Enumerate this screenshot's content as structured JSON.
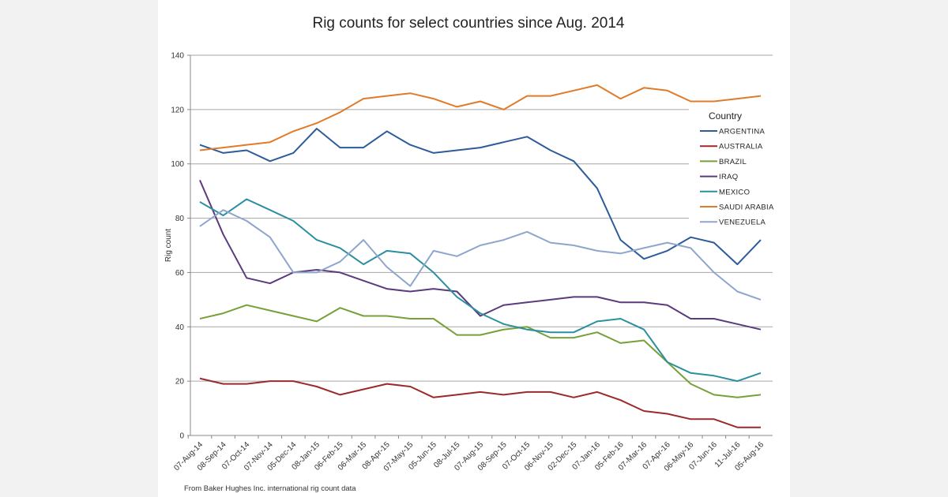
{
  "chart_data": {
    "type": "line",
    "title": "Rig counts for select countries since Aug. 2014",
    "xlabel": "",
    "ylabel": "Rig count",
    "ylim": [
      0,
      140
    ],
    "yticks": [
      0,
      20,
      40,
      60,
      80,
      100,
      120,
      140
    ],
    "grid": true,
    "legend_title": "Country",
    "legend_placement": "right",
    "source_note": "From Baker Hughes Inc. international rig count data",
    "categories": [
      "07-Aug-14",
      "08-Sep-14",
      "07-Oct-14",
      "07-Nov-14",
      "05-Dec-14",
      "08-Jan-15",
      "06-Feb-15",
      "06-Mar-15",
      "08-Apr-15",
      "07-May-15",
      "05-Jun-15",
      "08-Jul-15",
      "07-Aug-15",
      "08-Sep-15",
      "07-Oct-15",
      "06-Nov-15",
      "02-Dec-15",
      "07-Jan-16",
      "05-Feb-16",
      "07-Mar-16",
      "07-Apr-16",
      "06-May-16",
      "07-Jun-16",
      "11-Jul-16",
      "05-Aug-16"
    ],
    "series": [
      {
        "name": "ARGENTINA",
        "color": "#2e5b9a",
        "values": [
          107,
          104,
          105,
          101,
          104,
          113,
          106,
          106,
          112,
          107,
          104,
          105,
          106,
          108,
          110,
          105,
          101,
          91,
          72,
          65,
          68,
          73,
          71,
          63,
          72
        ]
      },
      {
        "name": "AUSTRALIA",
        "color": "#9c2a2a",
        "values": [
          21,
          19,
          19,
          20,
          20,
          18,
          15,
          17,
          19,
          18,
          14,
          15,
          16,
          15,
          16,
          16,
          14,
          16,
          13,
          9,
          8,
          6,
          6,
          3,
          3
        ]
      },
      {
        "name": "BRAZIL",
        "color": "#77a03a",
        "values": [
          43,
          45,
          48,
          46,
          44,
          42,
          47,
          44,
          44,
          43,
          43,
          37,
          37,
          39,
          40,
          36,
          36,
          38,
          34,
          35,
          27,
          19,
          15,
          14,
          15
        ]
      },
      {
        "name": "IRAQ",
        "color": "#5b3a7e",
        "values": [
          94,
          74,
          58,
          56,
          60,
          61,
          60,
          57,
          54,
          53,
          54,
          53,
          44,
          48,
          49,
          50,
          51,
          51,
          49,
          49,
          48,
          43,
          43,
          41,
          39
        ]
      },
      {
        "name": "MEXICO",
        "color": "#2a8fa0",
        "values": [
          86,
          81,
          87,
          83,
          79,
          72,
          69,
          63,
          68,
          67,
          60,
          51,
          45,
          41,
          39,
          38,
          38,
          42,
          43,
          39,
          27,
          23,
          22,
          20,
          23
        ]
      },
      {
        "name": "SAUDI ARABIA",
        "color": "#e07b2a",
        "values": [
          105,
          106,
          107,
          108,
          112,
          115,
          119,
          124,
          125,
          126,
          124,
          121,
          123,
          120,
          125,
          125,
          127,
          129,
          124,
          128,
          127,
          123,
          123,
          124,
          125
        ]
      },
      {
        "name": "VENEZUELA",
        "color": "#8ea6cc",
        "values": [
          77,
          83,
          79,
          73,
          60,
          60,
          64,
          72,
          62,
          55,
          68,
          66,
          70,
          72,
          75,
          71,
          70,
          68,
          67,
          69,
          71,
          69,
          60,
          53,
          50
        ]
      }
    ]
  }
}
